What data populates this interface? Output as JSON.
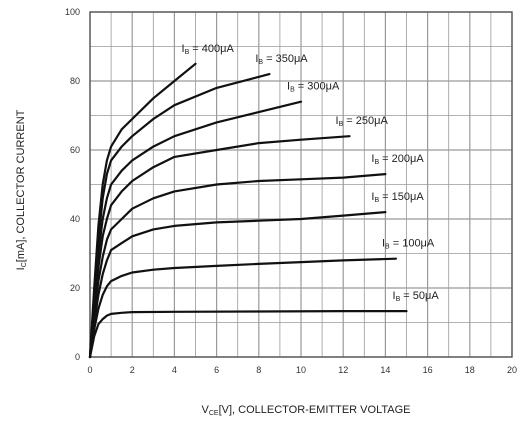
{
  "chart_data": {
    "type": "line",
    "xlabel": {
      "main": "V",
      "sub": "CE",
      "rest": "[V], COLLECTOR-EMITTER VOLTAGE"
    },
    "ylabel": {
      "main": "I",
      "sub": "C",
      "rest": "[mA], COLLECTOR CURRENT"
    },
    "xlim": [
      0,
      20
    ],
    "ylim": [
      0,
      100
    ],
    "x_ticks": [
      0,
      2,
      4,
      6,
      8,
      10,
      12,
      14,
      16,
      18,
      20
    ],
    "y_ticks": [
      0,
      20,
      40,
      60,
      80,
      100
    ],
    "grid": true,
    "line_color": "#111111",
    "grid_color": "#9a9a9a",
    "series": [
      {
        "name": "I_B = 400μA",
        "label": {
          "main": "I",
          "sub": "B",
          "rest": " = 400μA"
        },
        "points": [
          [
            0,
            0
          ],
          [
            0.2,
            20
          ],
          [
            0.4,
            38
          ],
          [
            0.6,
            50
          ],
          [
            0.8,
            57
          ],
          [
            1.0,
            61
          ],
          [
            1.5,
            66
          ],
          [
            2,
            69
          ],
          [
            3,
            75
          ],
          [
            4,
            80
          ],
          [
            5,
            85
          ]
        ]
      },
      {
        "name": "I_B = 350μA",
        "label": {
          "main": "I",
          "sub": "B",
          "rest": " = 350μA"
        },
        "points": [
          [
            0,
            0
          ],
          [
            0.2,
            18
          ],
          [
            0.4,
            34
          ],
          [
            0.6,
            46
          ],
          [
            0.8,
            53
          ],
          [
            1.0,
            57
          ],
          [
            1.5,
            61
          ],
          [
            2,
            64
          ],
          [
            3,
            69
          ],
          [
            4,
            73
          ],
          [
            6,
            78
          ],
          [
            8.5,
            82
          ]
        ]
      },
      {
        "name": "I_B = 300μA",
        "label": {
          "main": "I",
          "sub": "B",
          "rest": " = 300μA"
        },
        "points": [
          [
            0,
            0
          ],
          [
            0.2,
            16
          ],
          [
            0.4,
            30
          ],
          [
            0.6,
            40
          ],
          [
            0.8,
            46
          ],
          [
            1.0,
            50
          ],
          [
            1.5,
            54
          ],
          [
            2,
            57
          ],
          [
            3,
            61
          ],
          [
            4,
            64
          ],
          [
            6,
            68
          ],
          [
            8,
            71
          ],
          [
            10,
            74
          ]
        ]
      },
      {
        "name": "I_B = 250μA",
        "label": {
          "main": "I",
          "sub": "B",
          "rest": " = 250μA"
        },
        "points": [
          [
            0,
            0
          ],
          [
            0.2,
            14
          ],
          [
            0.4,
            26
          ],
          [
            0.6,
            35
          ],
          [
            0.8,
            40
          ],
          [
            1.0,
            44
          ],
          [
            1.5,
            48
          ],
          [
            2,
            51
          ],
          [
            3,
            55
          ],
          [
            4,
            58
          ],
          [
            6,
            60
          ],
          [
            8,
            62
          ],
          [
            10,
            63
          ],
          [
            12.3,
            64
          ]
        ]
      },
      {
        "name": "I_B = 200μA",
        "label": {
          "main": "I",
          "sub": "B",
          "rest": " = 200μA"
        },
        "points": [
          [
            0,
            0
          ],
          [
            0.2,
            12
          ],
          [
            0.4,
            22
          ],
          [
            0.6,
            29
          ],
          [
            0.8,
            34
          ],
          [
            1.0,
            37
          ],
          [
            1.5,
            40
          ],
          [
            2,
            43
          ],
          [
            3,
            46
          ],
          [
            4,
            48
          ],
          [
            6,
            50
          ],
          [
            8,
            51
          ],
          [
            10,
            51.5
          ],
          [
            12,
            52
          ],
          [
            14,
            53
          ]
        ]
      },
      {
        "name": "I_B = 150μA",
        "label": {
          "main": "I",
          "sub": "B",
          "rest": " = 150μA"
        },
        "points": [
          [
            0,
            0
          ],
          [
            0.2,
            10
          ],
          [
            0.4,
            18
          ],
          [
            0.6,
            24
          ],
          [
            0.8,
            28
          ],
          [
            1.0,
            31
          ],
          [
            1.5,
            33
          ],
          [
            2,
            35
          ],
          [
            3,
            37
          ],
          [
            4,
            38
          ],
          [
            6,
            39
          ],
          [
            8,
            39.5
          ],
          [
            10,
            40
          ],
          [
            12,
            41
          ],
          [
            14,
            42
          ]
        ]
      },
      {
        "name": "I_B = 100μA",
        "label": {
          "main": "I",
          "sub": "B",
          "rest": " = 100μA"
        },
        "points": [
          [
            0,
            0
          ],
          [
            0.2,
            8
          ],
          [
            0.4,
            14
          ],
          [
            0.6,
            18
          ],
          [
            0.8,
            20.5
          ],
          [
            1.0,
            22
          ],
          [
            1.5,
            23.5
          ],
          [
            2,
            24.5
          ],
          [
            3,
            25.3
          ],
          [
            4,
            25.8
          ],
          [
            6,
            26.4
          ],
          [
            8,
            27
          ],
          [
            10,
            27.5
          ],
          [
            12,
            28
          ],
          [
            14.5,
            28.5
          ]
        ]
      },
      {
        "name": "I_B = 50μA",
        "label": {
          "main": "I",
          "sub": "B",
          "rest": " = 50μA"
        },
        "points": [
          [
            0,
            0
          ],
          [
            0.2,
            6
          ],
          [
            0.4,
            9.5
          ],
          [
            0.6,
            11
          ],
          [
            0.8,
            12
          ],
          [
            1.0,
            12.5
          ],
          [
            1.5,
            12.8
          ],
          [
            2,
            13
          ],
          [
            4,
            13.1
          ],
          [
            8,
            13.2
          ],
          [
            12,
            13.3
          ],
          [
            15,
            13.3
          ]
        ]
      }
    ]
  }
}
